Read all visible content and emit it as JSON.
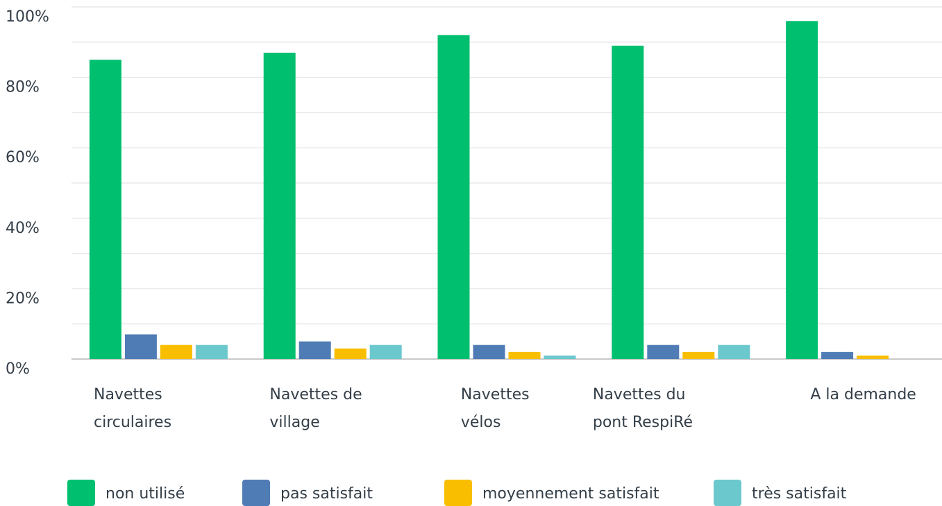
{
  "chart_data": {
    "type": "bar",
    "categories": [
      "Navettes\ncirculaires",
      "Navettes de\nvillage",
      "Navettes\nvélos",
      "Navettes du\npont RespiRé",
      "A la demande"
    ],
    "series": [
      {
        "name": "non utilisé",
        "color": "#00bf6f",
        "values": [
          85,
          87,
          92,
          89,
          96
        ]
      },
      {
        "name": "pas satisfait",
        "color": "#507cb6",
        "values": [
          7,
          5,
          4,
          4,
          2
        ]
      },
      {
        "name": "moyennement satisfait",
        "color": "#f9be00",
        "values": [
          4,
          3,
          2,
          2,
          1
        ]
      },
      {
        "name": "très satisfait",
        "color": "#6bc8cd",
        "values": [
          4,
          4,
          1,
          4,
          0
        ]
      }
    ],
    "ylim": [
      0,
      100
    ],
    "yticks": [
      {
        "value": 0,
        "label": "0%"
      },
      {
        "value": 20,
        "label": "20%"
      },
      {
        "value": 40,
        "label": "40%"
      },
      {
        "value": 60,
        "label": "60%"
      },
      {
        "value": 80,
        "label": "80%"
      },
      {
        "value": 100,
        "label": "100%"
      }
    ],
    "y_minor_ticks": [
      10,
      30,
      50,
      70,
      90
    ],
    "grid": true,
    "legend": "bottom"
  }
}
